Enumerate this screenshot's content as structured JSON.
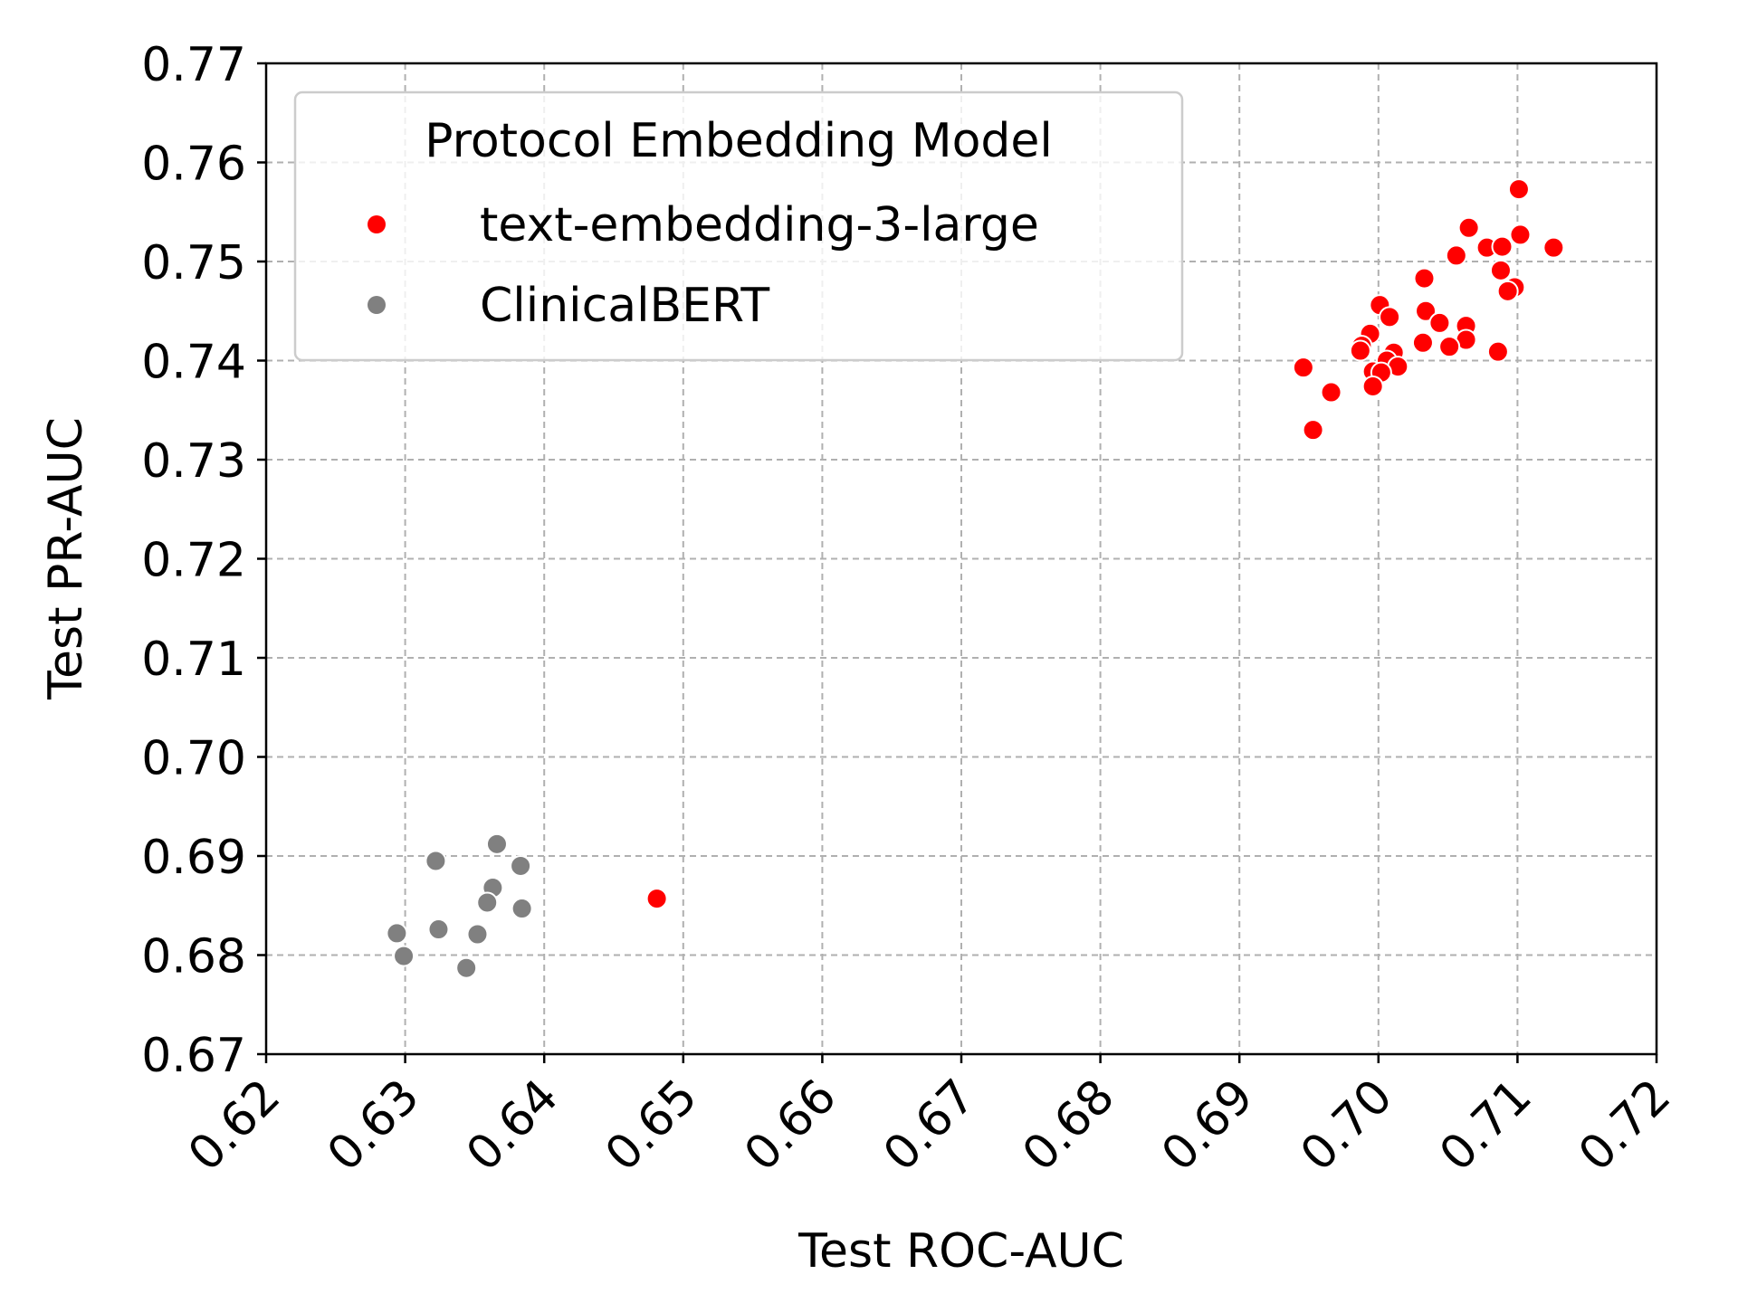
{
  "chart_data": {
    "type": "scatter",
    "title": "",
    "xlabel": "Test ROC-AUC",
    "ylabel": "Test PR-AUC",
    "xlim": [
      0.62,
      0.72
    ],
    "ylim": [
      0.67,
      0.77
    ],
    "x_ticks": [
      "0.62",
      "0.63",
      "0.64",
      "0.65",
      "0.66",
      "0.67",
      "0.68",
      "0.69",
      "0.70",
      "0.71",
      "0.72"
    ],
    "y_ticks": [
      "0.67",
      "0.68",
      "0.69",
      "0.70",
      "0.71",
      "0.72",
      "0.73",
      "0.74",
      "0.75",
      "0.76",
      "0.77"
    ],
    "grid": true,
    "legend": {
      "title": "Protocol Embedding Model",
      "placement": "top-left"
    },
    "series": [
      {
        "name": "text-embedding-3-large",
        "color": "#ff0000",
        "points": [
          [
            0.7101,
            0.7573
          ],
          [
            0.7065,
            0.7534
          ],
          [
            0.7102,
            0.7527
          ],
          [
            0.7078,
            0.7514
          ],
          [
            0.7089,
            0.7515
          ],
          [
            0.7126,
            0.7514
          ],
          [
            0.7056,
            0.7506
          ],
          [
            0.7088,
            0.7491
          ],
          [
            0.7098,
            0.7474
          ],
          [
            0.7093,
            0.747
          ],
          [
            0.7033,
            0.7483
          ],
          [
            0.7001,
            0.7456
          ],
          [
            0.7008,
            0.7444
          ],
          [
            0.7034,
            0.745
          ],
          [
            0.7044,
            0.7438
          ],
          [
            0.7063,
            0.7435
          ],
          [
            0.7063,
            0.7421
          ],
          [
            0.7032,
            0.7418
          ],
          [
            0.7051,
            0.7414
          ],
          [
            0.7086,
            0.7409
          ],
          [
            0.6994,
            0.7427
          ],
          [
            0.6988,
            0.7415
          ],
          [
            0.6987,
            0.741
          ],
          [
            0.7011,
            0.7408
          ],
          [
            0.7006,
            0.74
          ],
          [
            0.7014,
            0.7394
          ],
          [
            0.6996,
            0.7389
          ],
          [
            0.7002,
            0.7388
          ],
          [
            0.6946,
            0.7393
          ],
          [
            0.6996,
            0.7374
          ],
          [
            0.6966,
            0.7368
          ],
          [
            0.6953,
            0.733
          ],
          [
            0.6481,
            0.6857
          ]
        ]
      },
      {
        "name": "ClinicalBERT",
        "color": "#808080",
        "points": [
          [
            0.6366,
            0.6912
          ],
          [
            0.6322,
            0.6895
          ],
          [
            0.6383,
            0.689
          ],
          [
            0.6363,
            0.6868
          ],
          [
            0.6359,
            0.6853
          ],
          [
            0.6384,
            0.6847
          ],
          [
            0.6324,
            0.6826
          ],
          [
            0.6294,
            0.6822
          ],
          [
            0.6352,
            0.6821
          ],
          [
            0.6299,
            0.6799
          ],
          [
            0.6344,
            0.6787
          ]
        ]
      }
    ]
  }
}
